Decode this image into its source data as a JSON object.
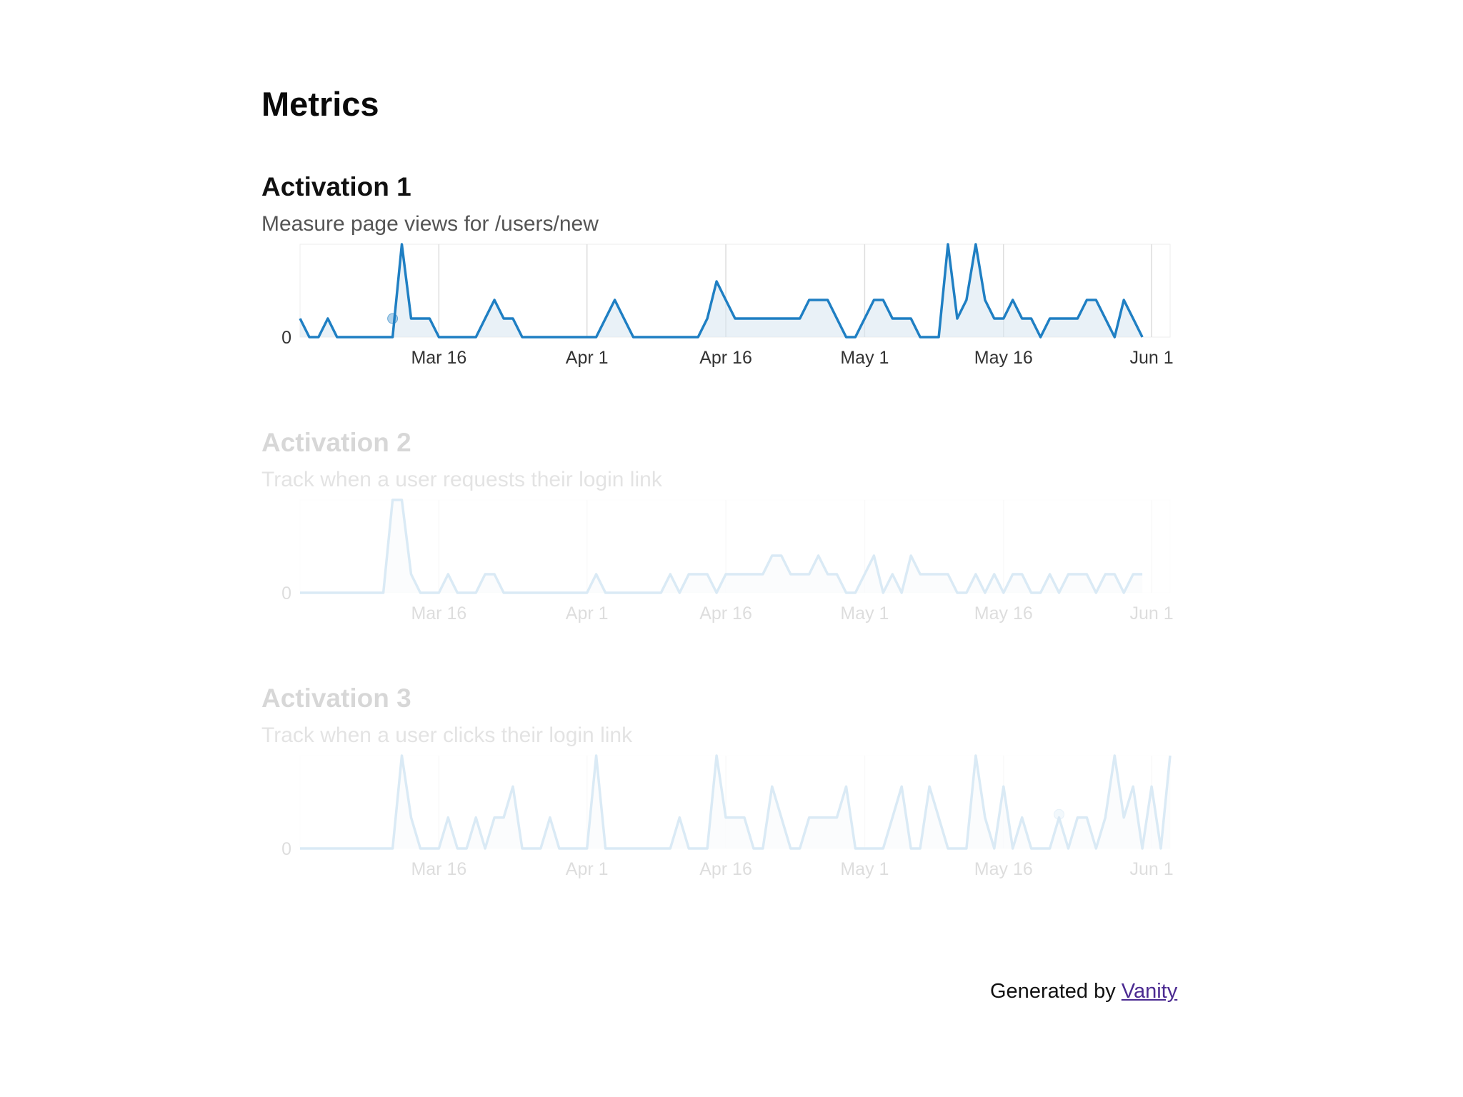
{
  "page": {
    "title": "Metrics"
  },
  "footer": {
    "generated_by": "Generated by",
    "link_label": "Vanity"
  },
  "colors": {
    "line": "#1f7fc3",
    "area": "#dbe7f1",
    "grid": "#dddddd",
    "link": "#4b2a91"
  },
  "chart_data": [
    {
      "type": "area",
      "title": "Activation 1",
      "subtitle": "Measure page views for /users/new",
      "x_start": "Mar 1",
      "x_tick_labels": [
        "Mar 16",
        "Apr 1",
        "Apr 16",
        "May 1",
        "May 16",
        "Jun 1"
      ],
      "y_tick_labels": [
        "0"
      ],
      "ylim": [
        0,
        5
      ],
      "highlight_index": 10,
      "values": [
        1,
        0,
        0,
        1,
        0,
        0,
        0,
        0,
        0,
        0,
        0,
        5,
        1,
        1,
        1,
        0,
        0,
        0,
        0,
        0,
        1,
        2,
        1,
        1,
        0,
        0,
        0,
        0,
        0,
        0,
        0,
        0,
        0,
        1,
        2,
        1,
        0,
        0,
        0,
        0,
        0,
        0,
        0,
        0,
        1,
        3,
        2,
        1,
        1,
        1,
        1,
        1,
        1,
        1,
        1,
        2,
        2,
        2,
        1,
        0,
        0,
        1,
        2,
        2,
        1,
        1,
        1,
        0,
        0,
        0,
        5,
        1,
        2,
        5,
        2,
        1,
        1,
        2,
        1,
        1,
        0,
        1,
        1,
        1,
        1,
        2,
        2,
        1,
        0,
        2,
        1,
        0
      ],
      "grid": true,
      "dimmed": false
    },
    {
      "type": "area",
      "title": "Activation 2",
      "subtitle": "Track when a user requests their login link",
      "x_start": "Mar 1",
      "x_tick_labels": [
        "Mar 16",
        "Apr 1",
        "Apr 16",
        "May 1",
        "May 16",
        "Jun 1"
      ],
      "y_tick_labels": [
        "0"
      ],
      "ylim": [
        0,
        5
      ],
      "values": [
        0,
        0,
        0,
        0,
        0,
        0,
        0,
        0,
        0,
        0,
        5,
        5,
        1,
        0,
        0,
        0,
        1,
        0,
        0,
        0,
        1,
        1,
        0,
        0,
        0,
        0,
        0,
        0,
        0,
        0,
        0,
        0,
        1,
        0,
        0,
        0,
        0,
        0,
        0,
        0,
        1,
        0,
        1,
        1,
        1,
        0,
        1,
        1,
        1,
        1,
        1,
        2,
        2,
        1,
        1,
        1,
        2,
        1,
        1,
        0,
        0,
        1,
        2,
        0,
        1,
        0,
        2,
        1,
        1,
        1,
        1,
        0,
        0,
        1,
        0,
        1,
        0,
        1,
        1,
        0,
        0,
        1,
        0,
        1,
        1,
        1,
        0,
        1,
        1,
        0,
        1,
        1
      ],
      "grid": true,
      "dimmed": true
    },
    {
      "type": "area",
      "title": "Activation 3",
      "subtitle": "Track when a user clicks their login link",
      "x_start": "Mar 1",
      "x_tick_labels": [
        "Mar 16",
        "Apr 1",
        "Apr 16",
        "May 1",
        "May 16",
        "Jun 1"
      ],
      "y_tick_labels": [
        "0"
      ],
      "ylim": [
        0,
        3
      ],
      "highlight_index": 82,
      "values": [
        0,
        0,
        0,
        0,
        0,
        0,
        0,
        0,
        0,
        0,
        0,
        3,
        1,
        0,
        0,
        0,
        1,
        0,
        0,
        1,
        0,
        1,
        1,
        2,
        0,
        0,
        0,
        1,
        0,
        0,
        0,
        0,
        3,
        0,
        0,
        0,
        0,
        0,
        0,
        0,
        0,
        1,
        0,
        0,
        0,
        3,
        1,
        1,
        1,
        0,
        0,
        2,
        1,
        0,
        0,
        1,
        1,
        1,
        1,
        2,
        0,
        0,
        0,
        0,
        1,
        2,
        0,
        0,
        2,
        1,
        0,
        0,
        0,
        3,
        1,
        0,
        2,
        0,
        1,
        0,
        0,
        0,
        1,
        0,
        1,
        1,
        0,
        1,
        3,
        1,
        2,
        0,
        2,
        0,
        3
      ],
      "grid": true,
      "dimmed": true
    }
  ]
}
